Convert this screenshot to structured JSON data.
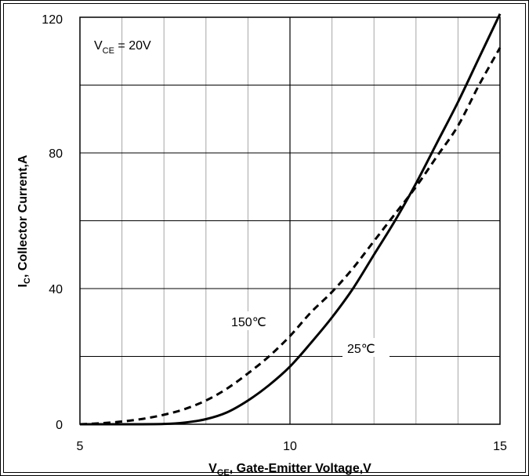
{
  "chart_data": {
    "type": "line",
    "xlabel": {
      "main": "V",
      "sub": "GE",
      "rest": ", Gate-Emitter Voltage,V"
    },
    "ylabel": {
      "main": "I",
      "sub": "C",
      "rest": ", Collector Current,A"
    },
    "annotation": {
      "main": "V",
      "sub": "CE",
      "rest": " = 20V"
    },
    "xlim": [
      5,
      15
    ],
    "ylim": [
      0,
      120
    ],
    "xticks": [
      5,
      10,
      15
    ],
    "yticks": [
      0,
      40,
      80,
      120
    ],
    "grid": true,
    "series": [
      {
        "name": "25℃",
        "style": "solid",
        "color": "#000000",
        "x": [
          5,
          6,
          7,
          7.5,
          8,
          8.5,
          9,
          9.5,
          10,
          10.5,
          11,
          11.5,
          12,
          12.5,
          13,
          13.5,
          14,
          14.5,
          15
        ],
        "y": [
          0,
          0,
          0.1,
          0.5,
          1.5,
          3.5,
          7,
          11.5,
          17,
          24,
          31.5,
          40,
          50,
          60,
          71,
          83,
          95,
          108,
          121
        ]
      },
      {
        "name": "150℃",
        "style": "dashed",
        "color": "#000000",
        "x": [
          5,
          5.5,
          6,
          6.5,
          7,
          7.5,
          8,
          8.5,
          9,
          9.5,
          10,
          10.5,
          11,
          11.5,
          12,
          12.5,
          13,
          13.5,
          14,
          14.5,
          15
        ],
        "y": [
          0,
          0.3,
          0.8,
          1.6,
          2.8,
          4.5,
          7,
          10.5,
          15,
          20,
          26,
          33,
          39,
          46,
          54,
          62,
          70,
          79,
          88,
          100,
          111
        ]
      }
    ]
  }
}
